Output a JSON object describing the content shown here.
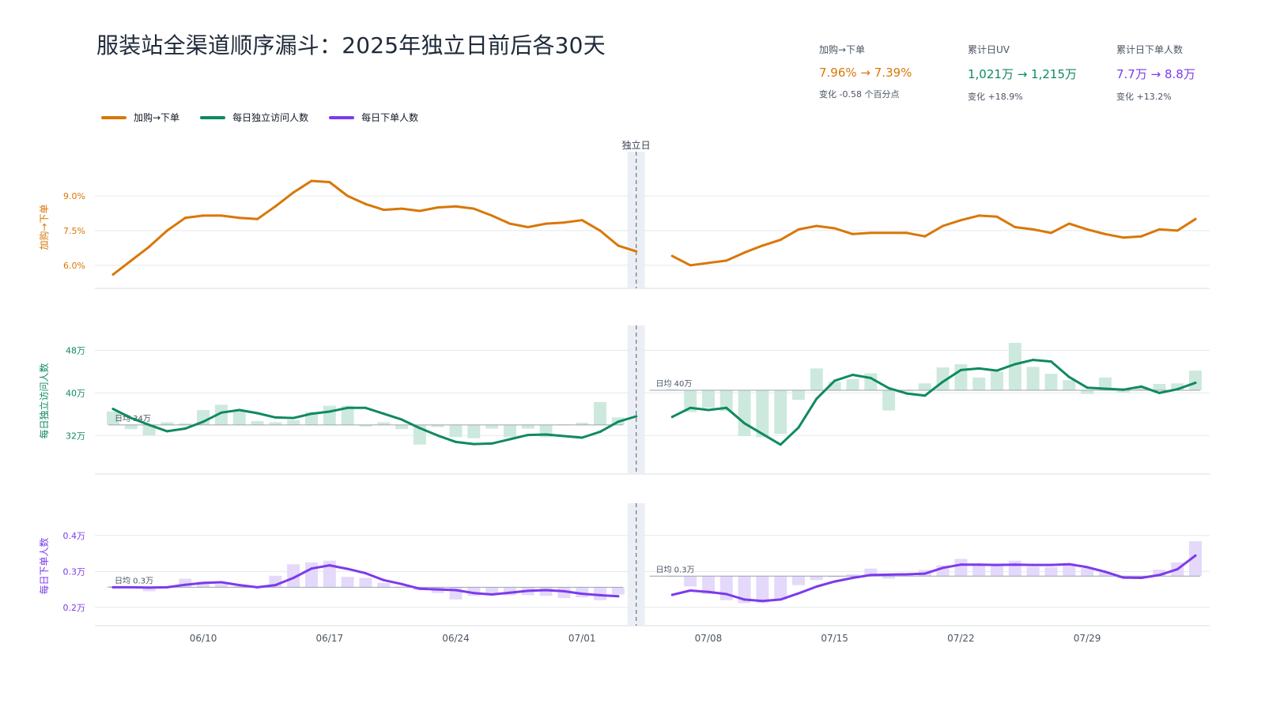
{
  "title": "服装站全渠道顺序漏斗：2025年独立日前后各30天",
  "kpis": [
    {
      "label": "加购→下单",
      "value": "7.96% → 7.39%",
      "change": "变化 -0.58 个百分点",
      "color": "#d97706"
    },
    {
      "label": "累计日UV",
      "value": "1,021万 → 1,215万",
      "change": "变化 +18.9%",
      "color": "#0f8a5f"
    },
    {
      "label": "累计日下单人数",
      "value": "7.7万 → 8.8万",
      "change": "变化 +13.2%",
      "color": "#7c3aed"
    }
  ],
  "legend": [
    {
      "label": "加购→下单",
      "color": "#d97706"
    },
    {
      "label": "每日独立访问人数",
      "color": "#0f8a5f"
    },
    {
      "label": "每日下单人数",
      "color": "#7c3aed"
    }
  ],
  "event_label": "独立日",
  "chart_data": {
    "type": "line",
    "x_dates": [
      "06/05",
      "06/06",
      "06/07",
      "06/08",
      "06/09",
      "06/10",
      "06/11",
      "06/12",
      "06/13",
      "06/14",
      "06/15",
      "06/16",
      "06/17",
      "06/18",
      "06/19",
      "06/20",
      "06/21",
      "06/22",
      "06/23",
      "06/24",
      "06/25",
      "06/26",
      "06/27",
      "06/28",
      "06/29",
      "06/30",
      "07/01",
      "07/02",
      "07/03",
      "07/04",
      "07/05",
      "07/06",
      "07/07",
      "07/08",
      "07/09",
      "07/10",
      "07/11",
      "07/12",
      "07/13",
      "07/14",
      "07/15",
      "07/16",
      "07/17",
      "07/18",
      "07/19",
      "07/20",
      "07/21",
      "07/22",
      "07/23",
      "07/24",
      "07/25",
      "07/26",
      "07/27",
      "07/28",
      "07/29",
      "07/30",
      "07/31",
      "08/01",
      "08/02",
      "08/03",
      "08/04"
    ],
    "x_ticks": [
      "06/10",
      "06/17",
      "06/24",
      "07/01",
      "07/08",
      "07/15",
      "07/22",
      "07/29"
    ],
    "event_date": "07/04",
    "panels": [
      {
        "name": "加购→下单",
        "ylabel": "加购→下单",
        "color": "#d97706",
        "ylim": [
          5.0,
          10.3
        ],
        "yticks": [
          6.0,
          7.5,
          9.0
        ],
        "ytick_labels": [
          "6.0%",
          "7.5%",
          "9.0%"
        ],
        "values": [
          5.6,
          6.2,
          6.8,
          7.5,
          8.05,
          8.15,
          8.15,
          8.05,
          8.0,
          8.55,
          9.15,
          9.65,
          9.6,
          9.0,
          8.65,
          8.4,
          8.45,
          8.35,
          8.5,
          8.55,
          8.45,
          8.15,
          7.8,
          7.65,
          7.8,
          7.85,
          7.95,
          7.5,
          6.85,
          6.6,
          null,
          6.4,
          6.0,
          6.1,
          6.2,
          6.55,
          6.85,
          7.1,
          7.55,
          7.7,
          7.6,
          7.35,
          7.4,
          7.4,
          7.4,
          7.25,
          7.7,
          7.95,
          8.15,
          8.1,
          7.65,
          7.55,
          7.4,
          7.8,
          7.55,
          7.35,
          7.2,
          7.25,
          7.55,
          7.5,
          8.0
        ]
      },
      {
        "name": "每日独立访问人数",
        "ylabel": "每日独立访问人数",
        "color": "#0f8a5f",
        "bar_color": "#cde9de",
        "ylim": [
          27,
          50
        ],
        "yticks": [
          32,
          40,
          48
        ],
        "ytick_labels": [
          "32万",
          "40万",
          "48万"
        ],
        "baseline_labels": [
          "日均 34万",
          "日均 40万"
        ],
        "baselines": [
          34.0,
          40.5
        ],
        "bars": [
          36.5,
          33.2,
          32.0,
          34.5,
          34.3,
          36.8,
          37.8,
          36.8,
          34.7,
          34.5,
          34.9,
          36.4,
          37.6,
          37.6,
          33.7,
          34.5,
          33.2,
          30.3,
          33.6,
          31.7,
          31.5,
          33.3,
          31.7,
          33.3,
          31.7,
          34.1,
          34.4,
          38.3,
          35.4,
          null,
          null,
          40.7,
          36.4,
          37.2,
          36.6,
          31.9,
          31.7,
          32.3,
          38.7,
          44.6,
          42.1,
          42.6,
          43.7,
          36.7,
          40.3,
          41.8,
          44.8,
          45.4,
          42.9,
          44.0,
          49.4,
          44.9,
          43.6,
          42.4,
          39.8,
          42.9,
          40.1,
          41.2,
          41.7,
          41.8,
          44.2
        ],
        "values": [
          37.0,
          35.3,
          34.0,
          32.8,
          33.3,
          34.6,
          36.3,
          36.8,
          36.2,
          35.4,
          35.3,
          36.1,
          36.5,
          37.2,
          37.2,
          36.1,
          35.0,
          33.4,
          32.0,
          30.8,
          30.4,
          30.5,
          31.3,
          32.1,
          32.2,
          31.9,
          31.6,
          32.7,
          34.6,
          35.6,
          null,
          35.5,
          37.2,
          36.8,
          37.2,
          34.3,
          32.3,
          30.3,
          33.5,
          38.9,
          42.3,
          43.4,
          42.8,
          40.9,
          39.9,
          39.5,
          42.1,
          44.3,
          44.6,
          44.2,
          45.4,
          46.2,
          45.9,
          43.0,
          41.0,
          40.8,
          40.6,
          41.2,
          40.0,
          40.7,
          41.9
        ]
      },
      {
        "name": "每日下单人数",
        "ylabel": "每日下单人数",
        "color": "#7c3aed",
        "bar_color": "#e4d9fb",
        "ylim": [
          0.18,
          0.45
        ],
        "yticks": [
          0.2,
          0.3,
          0.4
        ],
        "ytick_labels": [
          "0.2万",
          "0.3万",
          "0.4万"
        ],
        "baseline_labels": [
          "日均 0.3万",
          "日均 0.3万"
        ],
        "baselines": [
          0.256,
          0.287
        ],
        "bars": [
          0.259,
          0.255,
          0.245,
          0.256,
          0.28,
          0.272,
          0.265,
          0.259,
          0.259,
          0.288,
          0.32,
          0.325,
          0.33,
          0.285,
          0.282,
          0.268,
          0.258,
          0.248,
          0.24,
          0.222,
          0.232,
          0.234,
          0.234,
          0.234,
          0.232,
          0.226,
          0.228,
          0.22,
          0.236,
          null,
          null,
          0.287,
          0.258,
          0.237,
          0.22,
          0.212,
          0.212,
          0.222,
          0.262,
          0.276,
          0.284,
          0.292,
          0.308,
          0.28,
          0.291,
          0.304,
          0.317,
          0.335,
          0.317,
          0.315,
          0.33,
          0.313,
          0.312,
          0.323,
          0.309,
          0.298,
          0.281,
          0.281,
          0.305,
          0.325,
          0.384
        ],
        "values": [
          0.256,
          0.256,
          0.255,
          0.256,
          0.263,
          0.268,
          0.27,
          0.262,
          0.256,
          0.262,
          0.282,
          0.308,
          0.317,
          0.307,
          0.295,
          0.276,
          0.265,
          0.252,
          0.25,
          0.248,
          0.24,
          0.236,
          0.241,
          0.246,
          0.248,
          0.245,
          0.238,
          0.234,
          0.231,
          null,
          null,
          0.235,
          0.247,
          0.243,
          0.237,
          0.222,
          0.218,
          0.222,
          0.239,
          0.258,
          0.272,
          0.282,
          0.29,
          0.291,
          0.292,
          0.294,
          0.31,
          0.319,
          0.319,
          0.318,
          0.319,
          0.318,
          0.318,
          0.32,
          0.312,
          0.299,
          0.283,
          0.282,
          0.29,
          0.306,
          0.344
        ]
      }
    ]
  }
}
